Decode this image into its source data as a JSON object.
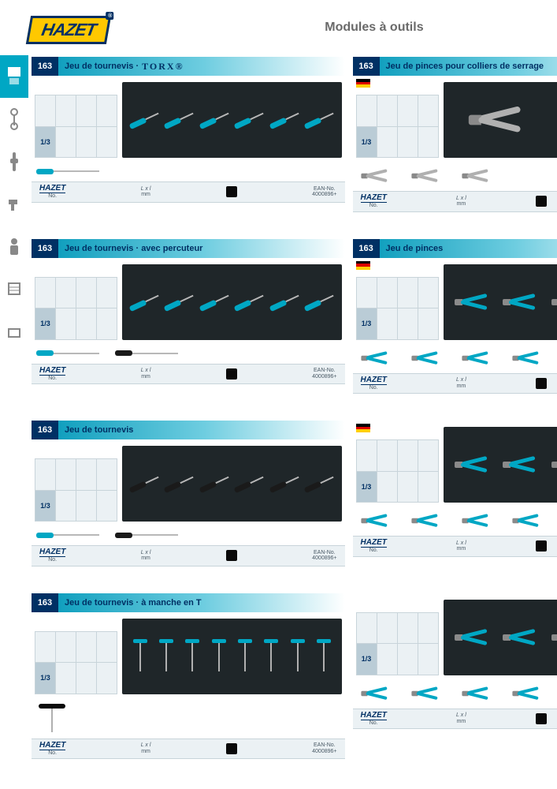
{
  "brand": "HAZET",
  "page_title": "Modules à outils",
  "sidebar_items": [
    {
      "name": "cabinet",
      "active": true
    },
    {
      "name": "wrench",
      "active": false
    },
    {
      "name": "socket",
      "active": false
    },
    {
      "name": "drill",
      "active": false
    },
    {
      "name": "worker",
      "active": false
    },
    {
      "name": "cart",
      "active": false
    },
    {
      "name": "box",
      "active": false
    }
  ],
  "info_bar": {
    "brand_no_label": "No.",
    "dim_header": "L x l",
    "dim_unit": "mm",
    "ean_label1": "EAN-No.",
    "ean_label2": "4000896+"
  },
  "spec_row_label": "1/3",
  "modules": [
    {
      "num": "163",
      "title": "Jeu de tournevis ·",
      "brand_suffix": "TORX®",
      "has_flag": false,
      "image_style": "screwdrivers-cyan",
      "strip": [
        "screwdriver-cyan"
      ]
    },
    {
      "num": "163",
      "title": "Jeu de pinces pour colliers de serrage",
      "has_flag": true,
      "image_style": "pliers-silver",
      "strip": [
        "plier-silver",
        "plier-silver",
        "plier-silver"
      ]
    },
    {
      "num": "163",
      "title": "Jeu de tournevis · avec percuteur",
      "has_flag": false,
      "image_style": "screwdrivers-cyan",
      "strip": [
        "screwdriver-cyan",
        "screwdriver-dark"
      ]
    },
    {
      "num": "163",
      "title": "Jeu de pinces",
      "has_flag": true,
      "image_style": "pliers-cyan",
      "strip": [
        "plier-cyan",
        "plier-cyan",
        "plier-cyan",
        "plier-cyan"
      ]
    },
    {
      "num": "163",
      "title": "Jeu de tournevis",
      "has_flag": false,
      "image_style": "screwdrivers-dark",
      "strip": [
        "screwdriver-cyan",
        "screwdriver-dark"
      ]
    },
    {
      "num": "",
      "title": "",
      "has_flag": true,
      "no_header": true,
      "image_style": "pliers-cyan",
      "strip": [
        "plier-cyan",
        "plier-cyan",
        "plier-cyan",
        "plier-cyan"
      ]
    },
    {
      "num": "163",
      "title": "Jeu de tournevis · à manche en T",
      "has_flag": false,
      "image_style": "t-handles",
      "strip": [
        "t-handle"
      ]
    },
    {
      "num": "",
      "title": "",
      "has_flag": false,
      "no_header": true,
      "image_style": "pliers-cyan",
      "strip": [
        "plier-cyan",
        "plier-cyan",
        "plier-cyan",
        "plier-cyan",
        "plier-cyan",
        "plier-cyan"
      ]
    }
  ],
  "colors": {
    "brand_blue": "#003064",
    "brand_yellow": "#ffc800",
    "accent_cyan": "#00a7c4",
    "header_gradient_start": "#0097b8",
    "header_gradient_mid": "#6ecde0",
    "spec_bg": "#ebf1f4",
    "spec_border": "#c8d4da",
    "spec_label_bg": "#baccd6",
    "product_bg": "#1f2629"
  }
}
